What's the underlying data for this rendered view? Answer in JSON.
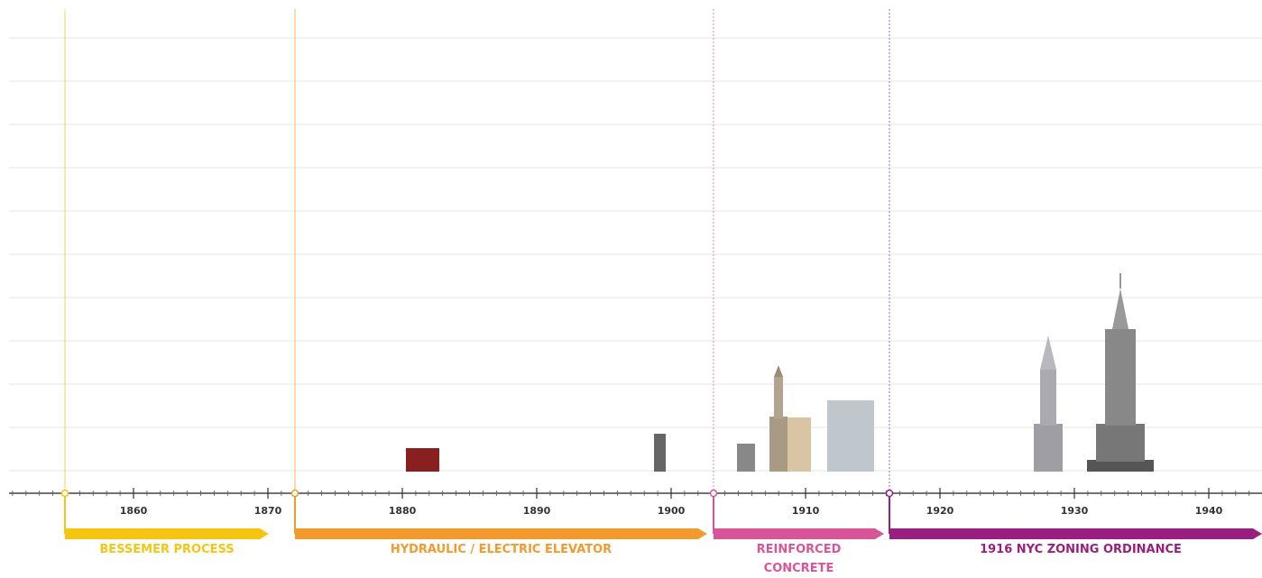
{
  "timeline": {
    "decades": [
      "1860",
      "1870",
      "1880",
      "1890",
      "1900",
      "1910",
      "1920",
      "1930",
      "1940"
    ],
    "eras": [
      {
        "label": [
          "BESSEMER PROCESS"
        ],
        "color": "#f6c512"
      },
      {
        "label": [
          "HYDRAULIC / ELECTRIC ELEVATOR"
        ],
        "color": "#f39a2c"
      },
      {
        "label": [
          "REINFORCED",
          "CONCRETE"
        ],
        "color": "#d9559a"
      },
      {
        "label": [
          "1916 NYC ZONING ORDINANCE"
        ],
        "color": "#9a1e80"
      }
    ]
  }
}
